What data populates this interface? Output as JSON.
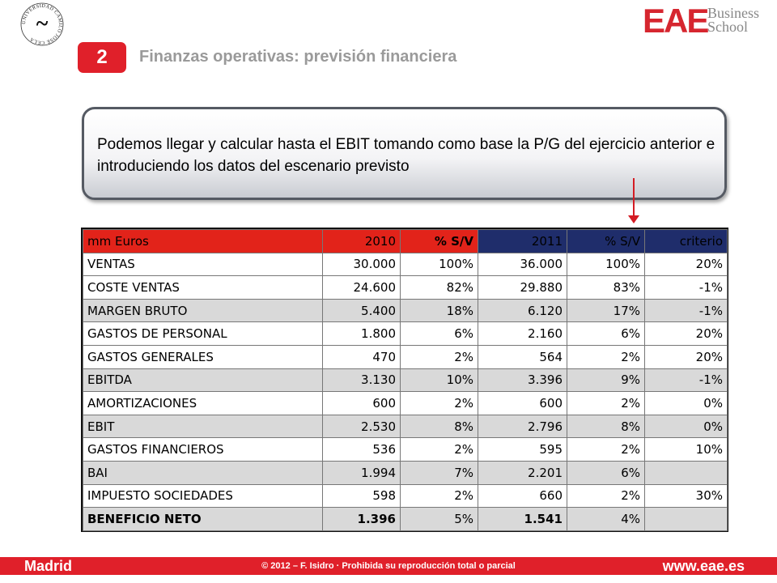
{
  "seal": {
    "text": "UNIVERSIDAD CAMILO JOSÉ CELA",
    "glyph": "~"
  },
  "logo": {
    "mark": "EAE",
    "line1": "Business",
    "line2": "School"
  },
  "slide": {
    "number": "2",
    "title": "Finanzas operativas: previsión financiera"
  },
  "callout": {
    "text": "Podemos llegar y calcular hasta el EBIT tomando como base la P/G del ejercicio anterior e introduciendo los datos del escenario previsto"
  },
  "table": {
    "header": {
      "label": "mm Euros",
      "y2010": "2010",
      "pct2010": "% S/V",
      "y2011": "2011",
      "pct2011": "% S/V",
      "criterio": "criterio"
    },
    "rows": [
      {
        "label": "VENTAS",
        "v2010": "30.000",
        "p2010": "100%",
        "v2011": "36.000",
        "p2011": "100%",
        "criterio": "20%"
      },
      {
        "label": "COSTE VENTAS",
        "v2010": "24.600",
        "p2010": "82%",
        "v2011": "29.880",
        "p2011": "83%",
        "criterio": "-1%"
      },
      {
        "label": "MARGEN BRUTO",
        "v2010": "5.400",
        "p2010": "18%",
        "v2011": "6.120",
        "p2011": "17%",
        "criterio": "-1%"
      },
      {
        "label": "GASTOS DE PERSONAL",
        "v2010": "1.800",
        "p2010": "6%",
        "v2011": "2.160",
        "p2011": "6%",
        "criterio": "20%"
      },
      {
        "label": "GASTOS GENERALES",
        "v2010": "470",
        "p2010": "2%",
        "v2011": "564",
        "p2011": "2%",
        "criterio": "20%"
      },
      {
        "label": "EBITDA",
        "v2010": "3.130",
        "p2010": "10%",
        "v2011": "3.396",
        "p2011": "9%",
        "criterio": "-1%"
      },
      {
        "label": "AMORTIZACIONES",
        "v2010": "600",
        "p2010": "2%",
        "v2011": "600",
        "p2011": "2%",
        "criterio": "0%"
      },
      {
        "label": "EBIT",
        "v2010": "2.530",
        "p2010": "8%",
        "v2011": "2.796",
        "p2011": "8%",
        "criterio": "0%"
      },
      {
        "label": "GASTOS FINANCIEROS",
        "v2010": "536",
        "p2010": "2%",
        "v2011": "595",
        "p2011": "2%",
        "criterio": "10%"
      },
      {
        "label": "BAI",
        "v2010": "1.994",
        "p2010": "7%",
        "v2011": "2.201",
        "p2011": "6%",
        "criterio": ""
      },
      {
        "label": "IMPUESTO SOCIEDADES",
        "v2010": "598",
        "p2010": "2%",
        "v2011": "660",
        "p2011": "2%",
        "criterio": "30%"
      },
      {
        "label": "BENEFICIO NETO",
        "v2010": "1.396",
        "p2010": "5%",
        "v2011": "1.541",
        "p2011": "4%",
        "criterio": ""
      }
    ]
  },
  "footer": {
    "left": "Madrid",
    "center": "© 2012 – F. Isidro · Prohibida su reproducción total o parcial",
    "right": "www.eae.es"
  },
  "colors": {
    "accent_red": "#e0202a",
    "header_navy": "#1f2d6b",
    "shade_gray": "#d9d9d9"
  }
}
